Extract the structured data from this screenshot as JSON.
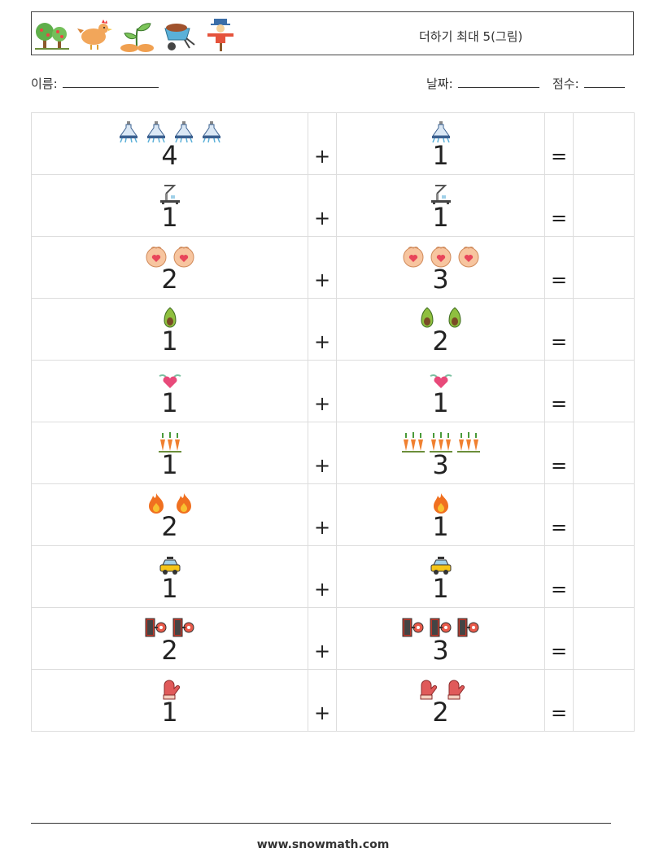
{
  "header": {
    "title": "더하기 최대 5(그림)",
    "icons": [
      "tree-icon",
      "hen-icon",
      "sprout-icon",
      "wheelbarrow-icon",
      "scarecrow-icon"
    ]
  },
  "fields": {
    "name_label": "이름:",
    "date_label": "날짜:",
    "score_label": "점수:"
  },
  "operators": {
    "plus": "+",
    "equals": "="
  },
  "problems": [
    {
      "left": {
        "num": "4",
        "icon": "flask-lamp-icon"
      },
      "right": {
        "num": "1",
        "icon": "flask-lamp-icon"
      }
    },
    {
      "left": {
        "num": "1",
        "icon": "robotic-arm-icon"
      },
      "right": {
        "num": "1",
        "icon": "robotic-arm-icon"
      }
    },
    {
      "left": {
        "num": "2",
        "icon": "face-icon"
      },
      "right": {
        "num": "3",
        "icon": "face-icon"
      }
    },
    {
      "left": {
        "num": "1",
        "icon": "avocado-icon"
      },
      "right": {
        "num": "2",
        "icon": "avocado-icon"
      }
    },
    {
      "left": {
        "num": "1",
        "icon": "winged-heart-icon"
      },
      "right": {
        "num": "1",
        "icon": "winged-heart-icon"
      }
    },
    {
      "left": {
        "num": "1",
        "icon": "carrot-bunch-icon"
      },
      "right": {
        "num": "3",
        "icon": "carrot-bunch-icon"
      }
    },
    {
      "left": {
        "num": "2",
        "icon": "fire-icon"
      },
      "right": {
        "num": "1",
        "icon": "fire-icon"
      }
    },
    {
      "left": {
        "num": "1",
        "icon": "taxi-icon"
      },
      "right": {
        "num": "1",
        "icon": "taxi-icon"
      }
    },
    {
      "left": {
        "num": "2",
        "icon": "film-reel-icon"
      },
      "right": {
        "num": "3",
        "icon": "film-reel-icon"
      }
    },
    {
      "left": {
        "num": "1",
        "icon": "mitten-icon"
      },
      "right": {
        "num": "2",
        "icon": "mitten-icon"
      }
    }
  ],
  "footer": {
    "url": "www.snowmath.com"
  }
}
